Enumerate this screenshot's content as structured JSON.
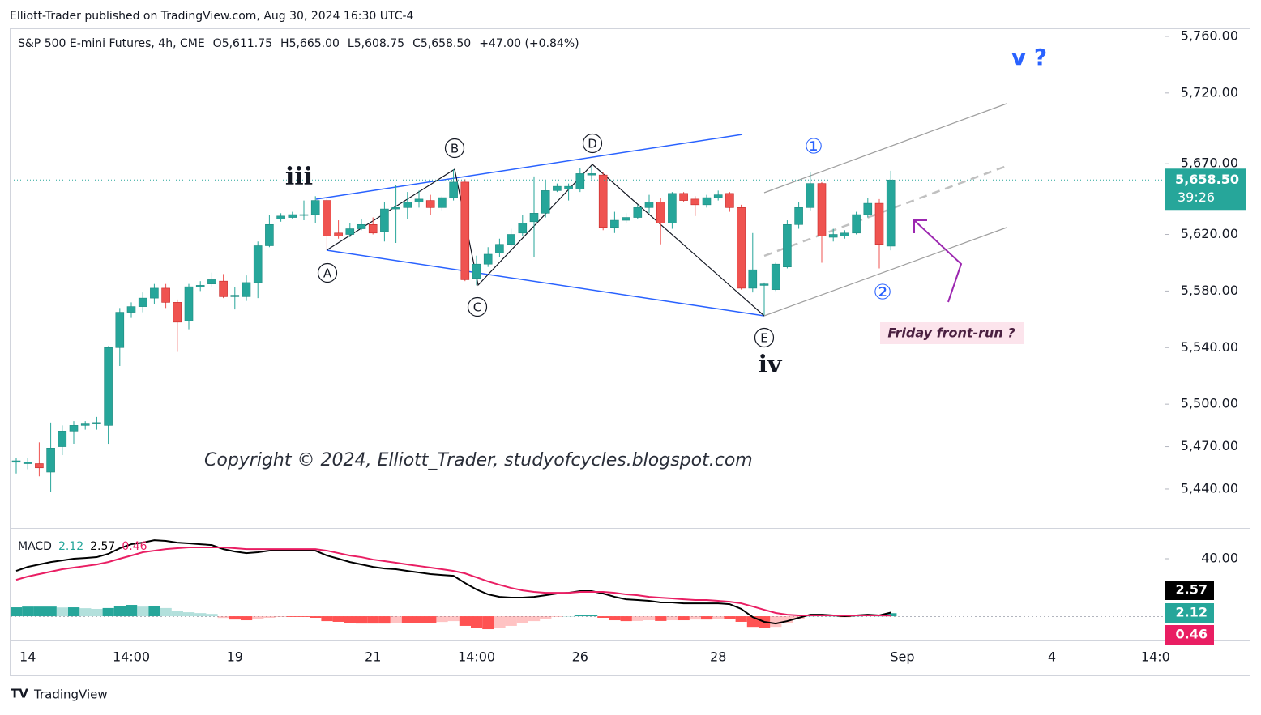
{
  "header": "Elliott-Trader published on TradingView.com, Aug 30, 2024 16:30 UTC-4",
  "footer_logo": "TradingView",
  "chart_data": [
    {
      "type": "candlestick",
      "title": "S&P 500 E-mini Futures, 4h, CME",
      "legend_values": [
        {
          "key": "O",
          "value": 5611.75,
          "label": "5,611.75"
        },
        {
          "key": "H",
          "value": 5665,
          "label": "5,665.00"
        },
        {
          "key": "L",
          "value": 5608.75,
          "label": "5,608.75"
        },
        {
          "key": "C",
          "value": 5658.5,
          "label": "5,658.50"
        }
      ],
      "change": "+47.00 (+0.84%)",
      "categories": [
        null,
        "14",
        null,
        null,
        null,
        null,
        null,
        null,
        null,
        null,
        "14:00",
        null,
        null,
        null,
        null,
        null,
        null,
        null,
        null,
        "19",
        null,
        null,
        null,
        null,
        null,
        null,
        null,
        null,
        null,
        null,
        null,
        "21",
        null,
        null,
        null,
        null,
        null,
        null,
        null,
        null,
        "14:00",
        null,
        null,
        null,
        null,
        null,
        null,
        null,
        null,
        "26",
        null,
        null,
        null,
        null,
        null,
        null,
        null,
        null,
        null,
        null,
        null,
        "28",
        null,
        null,
        null,
        null,
        null,
        null,
        null,
        null,
        null,
        null,
        null,
        null,
        null,
        null,
        null,
        "Sep",
        null,
        null,
        null,
        null,
        null,
        null,
        null,
        null,
        null,
        null,
        null,
        null,
        "4",
        null,
        null,
        null,
        null,
        null,
        null,
        null,
        null,
        "14:0"
      ],
      "open": [
        5459,
        5458,
        5458,
        5452,
        5470,
        5481,
        5485,
        5486,
        5485,
        5540,
        5565,
        5569,
        5575,
        5582,
        5572,
        5559,
        5583,
        5585,
        5587,
        5576,
        5576,
        5586,
        5612,
        5631,
        5632,
        5634,
        5634,
        5644,
        5621,
        5620,
        5624,
        5627,
        5622,
        5638,
        5639,
        5643,
        5644,
        5639,
        5646,
        5657,
        5589,
        5599,
        5607,
        5613,
        5621,
        5629,
        5635,
        5651,
        5652,
        5652,
        5662,
        5662,
        5625,
        5630,
        5632,
        5639,
        5643,
        5628,
        5649,
        5645,
        5641,
        5646,
        5649,
        5639,
        5582,
        5584,
        5581,
        5597,
        5627,
        5639,
        5656,
        5618,
        5619,
        5621,
        5634,
        5642,
        5611.75,
        null,
        null,
        null,
        null,
        null,
        null,
        null,
        null,
        null,
        null,
        null,
        null,
        null,
        null,
        null,
        null,
        null,
        null,
        null,
        null,
        null,
        null,
        null
      ],
      "high": [
        5462,
        5462,
        5473,
        5487,
        5485,
        5488,
        5488,
        5491,
        5541,
        5568,
        5572,
        5579,
        5585,
        5585,
        5574,
        5585,
        5587,
        5593,
        5592,
        5583,
        5591,
        5615,
        5634,
        5635,
        5636,
        5644,
        5647,
        5646,
        5630,
        5628,
        5631,
        5632,
        5643,
        5655,
        5650,
        5651,
        5648,
        5647,
        5666,
        5659,
        5605,
        5611,
        5617,
        5624,
        5634,
        5661,
        5658,
        5656,
        5656,
        5667,
        5668,
        5664,
        5636,
        5635,
        5641,
        5648,
        5646,
        5650,
        5650,
        5647,
        5648,
        5651,
        5650,
        5641,
        5621,
        5586,
        5600,
        5630,
        5643,
        5664,
        5657,
        5624,
        5623,
        5636,
        5646,
        5645,
        5665,
        null,
        null,
        null,
        null,
        null,
        null,
        null,
        null,
        null,
        null,
        null,
        null,
        null,
        null,
        null,
        null,
        null,
        null,
        null,
        null,
        null,
        null,
        null
      ],
      "low": [
        5451,
        5454,
        5449,
        5438,
        5464,
        5472,
        5482,
        5482,
        5472,
        5527,
        5561,
        5565,
        5571,
        5568,
        5537,
        5553,
        5580,
        5583,
        5575,
        5567,
        5573,
        5575,
        5611,
        5629,
        5631,
        5630,
        5628,
        5610,
        5617,
        5618,
        5623,
        5620,
        5615,
        5614,
        5631,
        5639,
        5634,
        5637,
        5644,
        5587,
        5584,
        5597,
        5604,
        5611,
        5619,
        5604,
        5632,
        5650,
        5644,
        5650,
        5659,
        5623,
        5621,
        5628,
        5631,
        5635,
        5613,
        5624,
        5643,
        5633,
        5639,
        5644,
        5636,
        5581,
        5579,
        5563,
        5580,
        5596,
        5624,
        5637,
        5600,
        5615,
        5617,
        5620,
        5632,
        5596,
        5608.75,
        null,
        null,
        null,
        null,
        null,
        null,
        null,
        null,
        null,
        null,
        null,
        null,
        null,
        null,
        null,
        null,
        null,
        null,
        null,
        null,
        null,
        null,
        null
      ],
      "close": [
        5460,
        5459,
        5455,
        5469,
        5481,
        5485,
        5486,
        5487,
        5540,
        5565,
        5569,
        5575,
        5582,
        5572,
        5558,
        5583,
        5584,
        5588,
        5576,
        5577,
        5586,
        5612,
        5627,
        5633,
        5634,
        5634,
        5644,
        5619,
        5619,
        5624,
        5627,
        5621,
        5638,
        5639,
        5643,
        5645,
        5639,
        5646,
        5657,
        5588,
        5599,
        5606,
        5613,
        5620,
        5628,
        5635,
        5651,
        5654,
        5654,
        5663,
        5663,
        5625,
        5630,
        5632,
        5639,
        5643,
        5628,
        5649,
        5644,
        5641,
        5646,
        5648,
        5639,
        5582,
        5595,
        5585,
        5599,
        5627,
        5639,
        5656,
        5619,
        5620,
        5621,
        5634,
        5642,
        5613,
        5658.5,
        null,
        null,
        null,
        null,
        null,
        null,
        null,
        null,
        null,
        null,
        null,
        null,
        null,
        null,
        null,
        null,
        null,
        null,
        null,
        null,
        null,
        null,
        null
      ],
      "up_color": "#26a69a",
      "down_color": "#ef5350",
      "ylim": [
        5412.5,
        5765.7
      ],
      "yticks": [
        {
          "value": 5760,
          "label": "5,760.00"
        },
        {
          "value": 5720,
          "label": "5,720.00"
        },
        {
          "value": 5670,
          "label": "5,670.00"
        },
        {
          "value": 5620,
          "label": "5,620.00"
        },
        {
          "value": 5580,
          "label": "5,580.00"
        },
        {
          "value": 5540,
          "label": "5,540.00"
        },
        {
          "value": 5500,
          "label": "5,500.00"
        },
        {
          "value": 5470,
          "label": "5,470.00"
        },
        {
          "value": 5440,
          "label": "5,440.00"
        }
      ],
      "last_price": {
        "value": 5658.5,
        "label": "5,658.50"
      },
      "countdown": "39:26",
      "annotations": [
        "iii",
        "iv",
        "v ?",
        "A",
        "B",
        "C",
        "D",
        "E",
        "①",
        "②",
        "Friday front-run ?",
        "Copyright © 2024, Elliott_Trader, studyofcycles.blogspot.com"
      ]
    },
    {
      "type": "macd",
      "title": "MACD",
      "ylim": [
        -16.3,
        61.4
      ],
      "yticks": [
        {
          "value": 40,
          "label": "40.00"
        }
      ],
      "series": [
        {
          "color": "#26a69a",
          "down_color": "#ff5252",
          "values": [
            6.2,
            6.7,
            6.7,
            6.7,
            6.1,
            6.2,
            5.6,
            5.1,
            5.7,
            7.3,
            7.9,
            6.7,
            7.3,
            5.7,
            3.9,
            2.8,
            2.2,
            1.6,
            -1.2,
            -2.3,
            -2.8,
            -2.2,
            -1.1,
            -0.5,
            -0.5,
            -0.5,
            -1.1,
            -3.4,
            -3.9,
            -4.5,
            -5.1,
            -5.1,
            -5.1,
            -4.5,
            -4.5,
            -4.5,
            -4.5,
            -4.0,
            -3.4,
            -6.7,
            -8.4,
            -9.0,
            -8.4,
            -6.7,
            -5.0,
            -3.4,
            -1.7,
            -0.5,
            0,
            0.6,
            0.6,
            -1.1,
            -2.8,
            -3.4,
            -3.3,
            -2.8,
            -3.3,
            -2.8,
            -2.8,
            -2.3,
            -2.3,
            -1.7,
            -1.7,
            -3.9,
            -7.4,
            -8.4,
            -7.4,
            -4.5,
            -1.7,
            0,
            0.5,
            0,
            -0.6,
            0,
            0.5,
            0,
            2.12
          ]
        },
        {
          "color": "#000000",
          "values": [
            31.5,
            34.3,
            36.0,
            37.7,
            38.8,
            40.0,
            40.5,
            41.1,
            43.4,
            47.3,
            50.1,
            51.2,
            52.9,
            52.4,
            51.2,
            50.7,
            50.1,
            49.5,
            46.7,
            45.0,
            43.9,
            44.5,
            45.6,
            46.2,
            46.2,
            46.2,
            45.6,
            42.2,
            40.0,
            37.7,
            36.0,
            34.3,
            33.2,
            32.7,
            31.5,
            30.4,
            29.3,
            28.7,
            28.1,
            23.1,
            18.6,
            15.2,
            13.5,
            13.0,
            13.0,
            13.5,
            14.6,
            15.8,
            16.3,
            17.5,
            17.5,
            15.8,
            13.5,
            11.8,
            11.3,
            10.7,
            9.6,
            9.6,
            9.0,
            9.0,
            9.0,
            9.0,
            8.4,
            5.1,
            -0.6,
            -3.9,
            -5.1,
            -3.4,
            -1.1,
            1.1,
            1.1,
            0.6,
            0,
            0.6,
            1.1,
            0.6,
            2.57
          ]
        },
        {
          "color": "#e91e63",
          "values": [
            25.3,
            27.6,
            29.3,
            31.0,
            32.7,
            33.8,
            34.9,
            36.0,
            37.7,
            40.0,
            42.2,
            44.5,
            45.6,
            46.7,
            47.3,
            47.9,
            47.9,
            47.9,
            47.9,
            47.3,
            46.7,
            46.7,
            46.7,
            46.7,
            46.7,
            46.7,
            46.7,
            45.6,
            43.9,
            42.2,
            41.1,
            39.4,
            38.3,
            37.2,
            36.0,
            34.9,
            33.8,
            32.7,
            31.5,
            29.8,
            27.0,
            24.2,
            21.9,
            19.7,
            18.0,
            16.9,
            16.3,
            16.3,
            16.3,
            16.9,
            16.9,
            16.9,
            16.3,
            15.2,
            14.6,
            13.5,
            12.9,
            12.4,
            11.8,
            11.3,
            11.3,
            10.7,
            10.1,
            9.0,
            6.8,
            4.5,
            2.3,
            1.1,
            0.6,
            0.6,
            0.6,
            0.6,
            0.6,
            0.6,
            0.6,
            0.6,
            0.46
          ]
        }
      ]
    }
  ]
}
